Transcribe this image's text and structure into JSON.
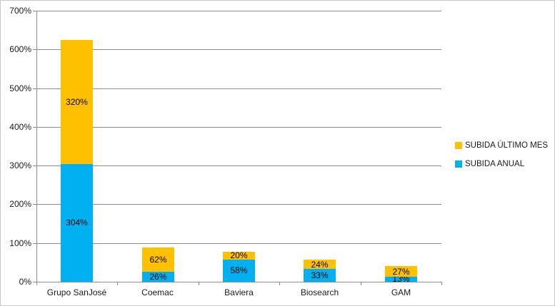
{
  "chart_data": {
    "type": "bar",
    "stacked": true,
    "title": "",
    "categories": [
      "Grupo SanJosé",
      "Coemac",
      "Baviera",
      "Biosearch",
      "GAM"
    ],
    "series": [
      {
        "name": "SUBIDA ANUAL",
        "key": "subida-anual",
        "color": "#00B0F0",
        "values": [
          304,
          26,
          58,
          33,
          13
        ]
      },
      {
        "name": "SUBIDA ÚLTIMO MES",
        "key": "subida-ultimo-mes",
        "color": "#FFC000",
        "values": [
          320,
          62,
          20,
          24,
          27
        ]
      }
    ],
    "stack_totals": [
      624,
      88,
      78,
      57,
      40
    ],
    "data_label_format": "{v}%",
    "ylim": [
      0,
      700
    ],
    "ytick_step": 100,
    "ytick_labels": [
      "0%",
      "100%",
      "200%",
      "300%",
      "400%",
      "500%",
      "600%",
      "700%"
    ],
    "xlabel": "",
    "ylabel": "",
    "grid": true,
    "legend_position": "right",
    "legend_items": [
      {
        "label": "SUBIDA ÚLTIMO MES",
        "color": "#FFC000"
      },
      {
        "label": "SUBIDA ANUAL",
        "color": "#00B0F0"
      }
    ],
    "colors": {
      "axis": "#8C8C8C",
      "gridline": "#8C8C8C",
      "text": "#1a1a1a",
      "background": "#FFFFFF",
      "border": "#C9C9C9"
    }
  }
}
